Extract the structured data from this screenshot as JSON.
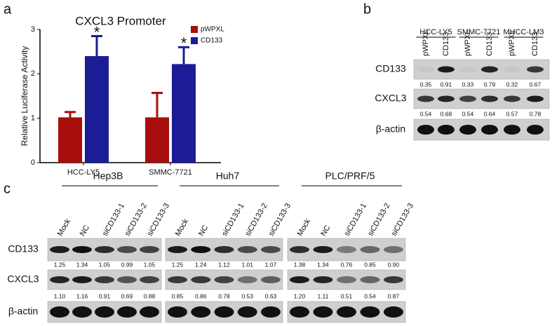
{
  "chart_data": {
    "type": "bar",
    "panel_label": "a",
    "title": "CXCL3 Promoter",
    "y_label": "Relative Luciferase Activity",
    "categories": [
      "HCC-LY5",
      "SMMC-7721"
    ],
    "series": [
      {
        "name": "pWPXL",
        "color": "#a80d0d",
        "values": [
          1.02,
          1.02
        ],
        "errors": [
          0.12,
          0.55
        ]
      },
      {
        "name": "CD133",
        "color": "#1c1c96",
        "values": [
          2.4,
          2.22
        ],
        "errors": [
          0.45,
          0.38
        ],
        "significance": [
          "*",
          "*"
        ]
      }
    ],
    "ylim": [
      0,
      3
    ],
    "yticks": [
      0,
      1,
      2,
      3
    ],
    "legend": "upper right"
  },
  "panel_b": {
    "label": "b",
    "groups": [
      {
        "name": "HCC-LY5",
        "lanes": [
          "pWPXL",
          "CD133"
        ]
      },
      {
        "name": "SMMC-7721",
        "lanes": [
          "pWPXL",
          "CD133"
        ]
      },
      {
        "name": "MHCC-LM3",
        "lanes": [
          "pWPXL",
          "CD133"
        ]
      }
    ],
    "rows": [
      {
        "name": "CD133",
        "quant": [
          "0.35",
          "0.91",
          "0.33",
          "0.79",
          "0.32",
          "0.67"
        ]
      },
      {
        "name": "CXCL3",
        "quant": [
          "0.54",
          "0.68",
          "0.54",
          "0.64",
          "0.57",
          "0.78"
        ]
      },
      {
        "name": "β-actin"
      }
    ]
  },
  "panel_c": {
    "label": "c",
    "rows": [
      "CD133",
      "CXCL3",
      "β-actin"
    ],
    "groups": [
      {
        "name": "Hep3B",
        "lanes": [
          "Mock",
          "NC",
          "siCD133-1",
          "siCD133-2",
          "siCD133-3"
        ],
        "quant": [
          [
            "1.25",
            "1.34",
            "1.05",
            "0.99",
            "1.05"
          ],
          [
            "1.10",
            "1.16",
            "0.91",
            "0.69",
            "0.88"
          ]
        ]
      },
      {
        "name": "Huh7",
        "lanes": [
          "Mock",
          "NC",
          "siCD133-1",
          "siCD133-2",
          "siCD133-3"
        ],
        "quant": [
          [
            "1.25",
            "1.24",
            "1.12",
            "1.01",
            "1.07"
          ],
          [
            "0.85",
            "0.86",
            "0.78",
            "0.53",
            "0.63"
          ]
        ]
      },
      {
        "name": "PLC/PRF/5",
        "lanes": [
          "Mock",
          "NC",
          "siCD133-1",
          "siCD133-2",
          "siCD133-3"
        ],
        "quant": [
          [
            "1.38",
            "1.34",
            "0.76",
            "0.85",
            "0.90"
          ],
          [
            "1.20",
            "1.11",
            "0.51",
            "0.54",
            "0.87"
          ]
        ]
      }
    ]
  }
}
